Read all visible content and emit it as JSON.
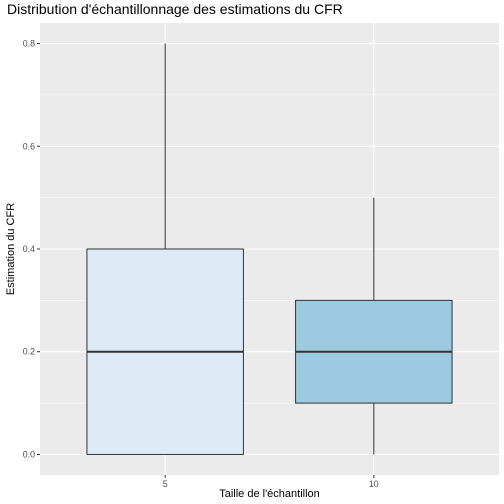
{
  "chart_data": {
    "type": "boxplot",
    "title": "Distribution d'échantillonnage des estimations du CFR",
    "xlabel": "Taille de l'échantillon",
    "ylabel": "Estimation du CFR",
    "categories": [
      "5",
      "10"
    ],
    "boxes": [
      {
        "category": "5",
        "min": 0.0,
        "q1": 0.0,
        "median": 0.2,
        "q3": 0.4,
        "max": 0.8,
        "fill": "#deebf7"
      },
      {
        "category": "10",
        "min": 0.0,
        "q1": 0.1,
        "median": 0.2,
        "q3": 0.3,
        "max": 0.5,
        "fill": "#9ecae1"
      }
    ],
    "ylim": [
      -0.04,
      0.84
    ],
    "yticks": [
      0.0,
      0.2,
      0.4,
      0.6,
      0.8
    ],
    "yticklabels": [
      "0.0",
      "0.2",
      "0.4",
      "0.6",
      "0.8"
    ],
    "grid": true,
    "legend": "none",
    "colors": {
      "panel_background": "#ebebeb",
      "grid": "#ffffff",
      "box_outline": "#333333",
      "tick_label": "#4d4d4d"
    }
  }
}
